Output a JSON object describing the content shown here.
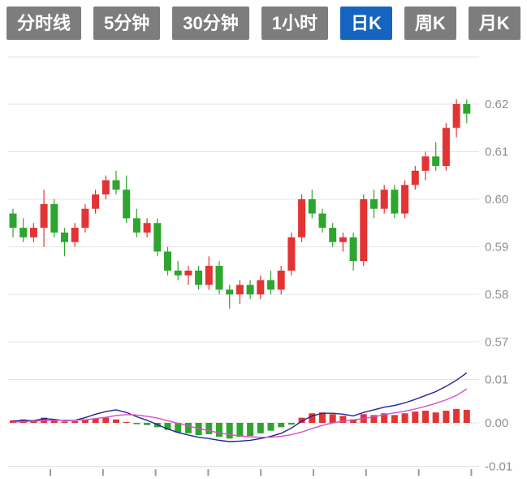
{
  "toolbar": {
    "buttons": [
      {
        "label": "分时线"
      },
      {
        "label": "5分钟"
      },
      {
        "label": "30分钟"
      },
      {
        "label": "1小时"
      },
      {
        "label": "日K"
      },
      {
        "label": "周K"
      },
      {
        "label": "月K"
      }
    ],
    "active_index": 4,
    "active_color": "#1565c0",
    "inactive_color": "#7d7d7d"
  },
  "colors": {
    "up": "#e23434",
    "down": "#2ea52e",
    "dif_line": "#22229a",
    "dea_line": "#d84fc8",
    "grid": "#e3e3e3",
    "axis_text": "#8f8f8f",
    "tick": "#9a9a9a"
  },
  "chart_data": {
    "type": "candlestick",
    "title": "",
    "indicator": "MACD",
    "candle_format": "open,high,low,close",
    "up_means": "close >= open (red, Chinese convention)",
    "price_axis": {
      "labels": [
        "0.62",
        "0.61",
        "0.60",
        "0.59",
        "0.58",
        "0.57"
      ],
      "values": [
        0.62,
        0.61,
        0.6,
        0.59,
        0.58,
        0.57
      ],
      "range": [
        0.568,
        0.63
      ]
    },
    "macd_axis": {
      "labels": [
        "0.01",
        "0.00",
        "-0.01"
      ],
      "values": [
        0.01,
        0.0,
        -0.01
      ]
    },
    "x_axis": {
      "labels_visible": false,
      "tick_count": 9
    },
    "candles": [
      [
        0.597,
        0.598,
        0.592,
        0.594
      ],
      [
        0.594,
        0.596,
        0.591,
        0.592
      ],
      [
        0.592,
        0.595,
        0.591,
        0.594
      ],
      [
        0.594,
        0.602,
        0.59,
        0.599
      ],
      [
        0.599,
        0.6,
        0.592,
        0.593
      ],
      [
        0.593,
        0.594,
        0.588,
        0.591
      ],
      [
        0.591,
        0.595,
        0.59,
        0.594
      ],
      [
        0.594,
        0.599,
        0.593,
        0.598
      ],
      [
        0.598,
        0.602,
        0.597,
        0.601
      ],
      [
        0.601,
        0.605,
        0.6,
        0.604
      ],
      [
        0.604,
        0.606,
        0.601,
        0.602
      ],
      [
        0.602,
        0.605,
        0.595,
        0.596
      ],
      [
        0.596,
        0.598,
        0.592,
        0.593
      ],
      [
        0.593,
        0.596,
        0.592,
        0.595
      ],
      [
        0.595,
        0.596,
        0.588,
        0.589
      ],
      [
        0.589,
        0.59,
        0.584,
        0.585
      ],
      [
        0.585,
        0.587,
        0.583,
        0.584
      ],
      [
        0.584,
        0.586,
        0.582,
        0.585
      ],
      [
        0.585,
        0.586,
        0.581,
        0.582
      ],
      [
        0.582,
        0.588,
        0.581,
        0.586
      ],
      [
        0.586,
        0.587,
        0.58,
        0.581
      ],
      [
        0.581,
        0.582,
        0.577,
        0.58
      ],
      [
        0.58,
        0.583,
        0.578,
        0.582
      ],
      [
        0.582,
        0.583,
        0.579,
        0.58
      ],
      [
        0.58,
        0.584,
        0.579,
        0.583
      ],
      [
        0.583,
        0.585,
        0.58,
        0.581
      ],
      [
        0.581,
        0.586,
        0.58,
        0.585
      ],
      [
        0.585,
        0.593,
        0.584,
        0.592
      ],
      [
        0.592,
        0.601,
        0.591,
        0.6
      ],
      [
        0.6,
        0.602,
        0.596,
        0.597
      ],
      [
        0.597,
        0.598,
        0.593,
        0.594
      ],
      [
        0.594,
        0.595,
        0.59,
        0.591
      ],
      [
        0.591,
        0.593,
        0.589,
        0.592
      ],
      [
        0.592,
        0.593,
        0.585,
        0.587
      ],
      [
        0.587,
        0.601,
        0.586,
        0.6
      ],
      [
        0.6,
        0.602,
        0.596,
        0.598
      ],
      [
        0.598,
        0.603,
        0.597,
        0.602
      ],
      [
        0.602,
        0.603,
        0.596,
        0.597
      ],
      [
        0.597,
        0.604,
        0.596,
        0.603
      ],
      [
        0.603,
        0.607,
        0.602,
        0.606
      ],
      [
        0.606,
        0.61,
        0.604,
        0.609
      ],
      [
        0.609,
        0.612,
        0.606,
        0.607
      ],
      [
        0.607,
        0.616,
        0.606,
        0.615
      ],
      [
        0.615,
        0.621,
        0.613,
        0.62
      ],
      [
        0.62,
        0.621,
        0.616,
        0.618
      ]
    ],
    "macd": {
      "histogram": [
        0.0006,
        0.0008,
        0.0005,
        0.0012,
        0.0008,
        0.0003,
        0.0004,
        0.0008,
        0.001,
        0.0012,
        0.0008,
        0.0002,
        -0.0003,
        -0.0005,
        -0.001,
        -0.0016,
        -0.0022,
        -0.0024,
        -0.0028,
        -0.0026,
        -0.0032,
        -0.0036,
        -0.0032,
        -0.003,
        -0.0024,
        -0.0018,
        -0.001,
        -0.0004,
        0.0012,
        0.0022,
        0.0024,
        0.002,
        0.0016,
        0.0008,
        0.002,
        0.0018,
        0.0022,
        0.0018,
        0.0022,
        0.0026,
        0.0028,
        0.0024,
        0.0028,
        0.0032,
        0.003
      ],
      "dif": [
        0.0004,
        0.0006,
        0.0005,
        0.001,
        0.0008,
        0.0005,
        0.0006,
        0.0012,
        0.002,
        0.0026,
        0.003,
        0.0024,
        0.0014,
        0.0006,
        -0.0004,
        -0.0014,
        -0.0022,
        -0.0028,
        -0.0033,
        -0.0036,
        -0.004,
        -0.0043,
        -0.0042,
        -0.004,
        -0.0036,
        -0.0031,
        -0.0024,
        -0.0012,
        0.0004,
        0.0016,
        0.0022,
        0.0022,
        0.002,
        0.0016,
        0.0024,
        0.003,
        0.0036,
        0.004,
        0.0046,
        0.0054,
        0.0063,
        0.0072,
        0.0084,
        0.0098,
        0.0115
      ],
      "dea": [
        0.0002,
        0.0003,
        0.0004,
        0.0005,
        0.0006,
        0.0006,
        0.0006,
        0.0007,
        0.001,
        0.0013,
        0.0017,
        0.0019,
        0.0018,
        0.0015,
        0.0011,
        0.0005,
        -0.0001,
        -0.0007,
        -0.0013,
        -0.0018,
        -0.0023,
        -0.0027,
        -0.003,
        -0.0032,
        -0.0033,
        -0.0033,
        -0.0031,
        -0.0027,
        -0.0021,
        -0.0013,
        -0.0006,
        0.0,
        0.0004,
        0.0007,
        0.001,
        0.0014,
        0.0019,
        0.0023,
        0.0027,
        0.0032,
        0.0038,
        0.0045,
        0.0053,
        0.0063,
        0.0078
      ]
    }
  }
}
